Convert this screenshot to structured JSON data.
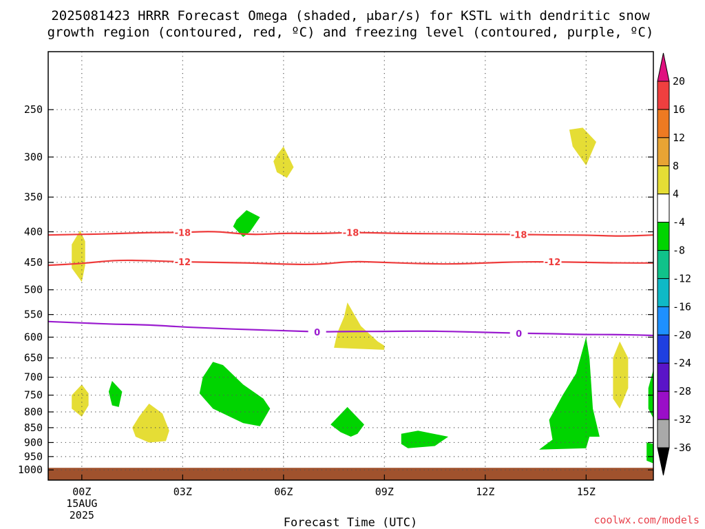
{
  "title_line1": "2025081423 HRRR Forecast Omega (shaded, μbar/s) for KSTL with dendritic snow",
  "title_line2": "growth region (contoured, red, ºC) and freezing level (contoured, purple, ºC)",
  "credit": "coolwx.com/models",
  "chart_data": {
    "type": "contour",
    "xlabel": "Forecast Time (UTC)",
    "ylabel": "",
    "x_range_hours": [
      -1,
      17
    ],
    "y_range_hPa": [
      1040,
      200
    ],
    "y_scale": "pressure (hPa), decreasing upward",
    "grid": true,
    "x_ticks": [
      {
        "hour": 0,
        "label": "00Z",
        "sub1": "15AUG",
        "sub2": "2025"
      },
      {
        "hour": 3,
        "label": "03Z"
      },
      {
        "hour": 6,
        "label": "06Z"
      },
      {
        "hour": 9,
        "label": "09Z"
      },
      {
        "hour": 12,
        "label": "12Z"
      },
      {
        "hour": 15,
        "label": "15Z"
      }
    ],
    "y_ticks": [
      250,
      300,
      350,
      400,
      450,
      500,
      550,
      600,
      650,
      700,
      750,
      800,
      850,
      900,
      950,
      1000
    ],
    "dgz_contours": [
      {
        "value": -18,
        "label": "-18",
        "color": "#ee3b3b",
        "points": [
          [
            -1,
            405
          ],
          [
            0,
            404
          ],
          [
            1,
            403
          ],
          [
            2,
            401
          ],
          [
            3,
            401
          ],
          [
            4,
            399
          ],
          [
            5,
            405
          ],
          [
            6,
            402
          ],
          [
            7,
            403
          ],
          [
            8,
            401
          ],
          [
            9,
            402
          ],
          [
            10,
            403
          ],
          [
            11,
            403
          ],
          [
            12,
            404
          ],
          [
            13,
            404
          ],
          [
            14,
            405
          ],
          [
            15,
            405
          ],
          [
            16,
            407
          ],
          [
            17,
            405
          ]
        ],
        "label_hours": [
          3,
          8,
          13
        ]
      },
      {
        "value": -12,
        "label": "-12",
        "color": "#ee3b3b",
        "points": [
          [
            -1,
            455
          ],
          [
            0,
            452
          ],
          [
            1,
            446
          ],
          [
            2,
            447
          ],
          [
            3,
            449
          ],
          [
            4,
            450
          ],
          [
            5,
            451
          ],
          [
            6,
            453
          ],
          [
            7,
            454
          ],
          [
            8,
            448
          ],
          [
            9,
            450
          ],
          [
            10,
            452
          ],
          [
            11,
            453
          ],
          [
            12,
            451
          ],
          [
            13,
            449
          ],
          [
            14,
            449
          ],
          [
            15,
            450
          ],
          [
            16,
            451
          ],
          [
            17,
            451
          ]
        ],
        "label_hours": [
          3,
          14
        ]
      }
    ],
    "freezing_level": {
      "value": 0,
      "label": "0",
      "color": "#9a1bcf",
      "points": [
        [
          -1,
          565
        ],
        [
          0,
          568
        ],
        [
          1,
          571
        ],
        [
          2,
          572
        ],
        [
          3,
          577
        ],
        [
          4,
          580
        ],
        [
          5,
          583
        ],
        [
          6,
          585
        ],
        [
          7,
          588
        ],
        [
          8,
          587
        ],
        [
          9,
          587
        ],
        [
          10,
          586
        ],
        [
          11,
          587
        ],
        [
          12,
          589
        ],
        [
          13,
          591
        ],
        [
          14,
          592
        ],
        [
          15,
          594
        ],
        [
          16,
          594
        ],
        [
          17,
          596
        ]
      ],
      "label_hours": [
        7,
        13
      ]
    },
    "omega_regions": [
      {
        "level": 4,
        "color": "#e5dd35",
        "points": [
          [
            -0.05,
            398
          ],
          [
            0.1,
            415
          ],
          [
            0.1,
            455
          ],
          [
            0,
            485
          ],
          [
            -0.3,
            460
          ],
          [
            -0.3,
            420
          ]
        ]
      },
      {
        "level": 4,
        "color": "#e5dd35",
        "points": [
          [
            0,
            720
          ],
          [
            0.2,
            745
          ],
          [
            0.2,
            780
          ],
          [
            0,
            815
          ],
          [
            -0.3,
            790
          ],
          [
            -0.3,
            750
          ]
        ]
      },
      {
        "level": 4,
        "color": "#e5dd35",
        "points": [
          [
            2,
            775
          ],
          [
            2.4,
            805
          ],
          [
            2.6,
            860
          ],
          [
            2.5,
            895
          ],
          [
            2,
            900
          ],
          [
            1.6,
            880
          ],
          [
            1.5,
            850
          ],
          [
            1.7,
            815
          ]
        ]
      },
      {
        "level": 4,
        "color": "#e5dd35",
        "points": [
          [
            5.8,
            298
          ],
          [
            6,
            288
          ],
          [
            6.3,
            312
          ],
          [
            6.1,
            325
          ],
          [
            5.8,
            318
          ],
          [
            5.7,
            305
          ]
        ]
      },
      {
        "level": 4,
        "color": "#e5dd35",
        "points": [
          [
            7.9,
            525
          ],
          [
            8.3,
            575
          ],
          [
            8.8,
            610
          ],
          [
            9,
            620
          ],
          [
            9,
            630
          ],
          [
            7.5,
            625
          ],
          [
            7.6,
            590
          ],
          [
            7.8,
            555
          ]
        ]
      },
      {
        "level": 4,
        "color": "#e5dd35",
        "points": [
          [
            14.5,
            270
          ],
          [
            14.9,
            268
          ],
          [
            15.3,
            283
          ],
          [
            15,
            310
          ],
          [
            14.6,
            288
          ]
        ]
      },
      {
        "level": 4,
        "color": "#e5dd35",
        "points": [
          [
            16,
            610
          ],
          [
            16.25,
            650
          ],
          [
            16.25,
            730
          ],
          [
            16,
            790
          ],
          [
            15.8,
            760
          ],
          [
            15.8,
            650
          ]
        ]
      },
      {
        "level": -4,
        "color": "#00d400",
        "points": [
          [
            4.6,
            382
          ],
          [
            4.9,
            368
          ],
          [
            5.3,
            378
          ],
          [
            5.0,
            400
          ],
          [
            4.8,
            408
          ],
          [
            4.5,
            392
          ]
        ]
      },
      {
        "level": -4,
        "color": "#00d400",
        "points": [
          [
            0.9,
            710
          ],
          [
            1.2,
            740
          ],
          [
            1.1,
            785
          ],
          [
            0.9,
            780
          ],
          [
            0.8,
            740
          ]
        ]
      },
      {
        "level": -4,
        "color": "#00d400",
        "points": [
          [
            3.9,
            660
          ],
          [
            4.2,
            668
          ],
          [
            4.8,
            720
          ],
          [
            5.4,
            760
          ],
          [
            5.6,
            790
          ],
          [
            5.3,
            845
          ],
          [
            4.8,
            835
          ],
          [
            3.9,
            790
          ],
          [
            3.5,
            745
          ],
          [
            3.6,
            700
          ]
        ]
      },
      {
        "level": -4,
        "color": "#00d400",
        "points": [
          [
            7.9,
            785
          ],
          [
            8.4,
            840
          ],
          [
            8.2,
            870
          ],
          [
            8,
            880
          ],
          [
            7.7,
            865
          ],
          [
            7.4,
            840
          ]
        ]
      },
      {
        "level": -4,
        "color": "#00d400",
        "points": [
          [
            10,
            860
          ],
          [
            10.9,
            880
          ],
          [
            10.5,
            912
          ],
          [
            9.7,
            920
          ],
          [
            9.5,
            905
          ],
          [
            9.5,
            870
          ]
        ]
      },
      {
        "level": -4,
        "color": "#00d400",
        "points": [
          [
            15,
            600
          ],
          [
            15.1,
            650
          ],
          [
            15.2,
            790
          ],
          [
            15.4,
            880
          ],
          [
            15.1,
            880
          ],
          [
            15.0,
            920
          ],
          [
            13.6,
            925
          ],
          [
            14.0,
            890
          ],
          [
            13.9,
            825
          ],
          [
            14.3,
            750
          ],
          [
            14.7,
            690
          ]
        ]
      },
      {
        "level": -4,
        "color": "#00d400",
        "points": [
          [
            17,
            680
          ],
          [
            17,
            820
          ],
          [
            16.85,
            790
          ],
          [
            16.85,
            730
          ]
        ]
      },
      {
        "level": -4,
        "color": "#00d400",
        "points": [
          [
            16.8,
            900
          ],
          [
            17,
            905
          ],
          [
            17,
            975
          ],
          [
            16.8,
            965
          ]
        ]
      }
    ],
    "terrain": {
      "color": "#a0522d",
      "pressure_hPa": 1000
    },
    "colorbar": {
      "labels": [
        "20",
        "16",
        "12",
        "8",
        "4",
        "-4",
        "-8",
        "-12",
        "-16",
        "-20",
        "-24",
        "-28",
        "-32",
        "-36"
      ],
      "colors": [
        "#ef3f3f",
        "#ee7a22",
        "#e8a434",
        "#e5dd35",
        "#ffffff",
        "#00d400",
        "#10c28a",
        "#0fb9c6",
        "#1e90ff",
        "#1f3fe0",
        "#5a14c8",
        "#9a0ec8",
        "#a9a9a9"
      ],
      "top_arrow_color": "#e0117f",
      "bottom_arrow_color": "#000000"
    }
  }
}
